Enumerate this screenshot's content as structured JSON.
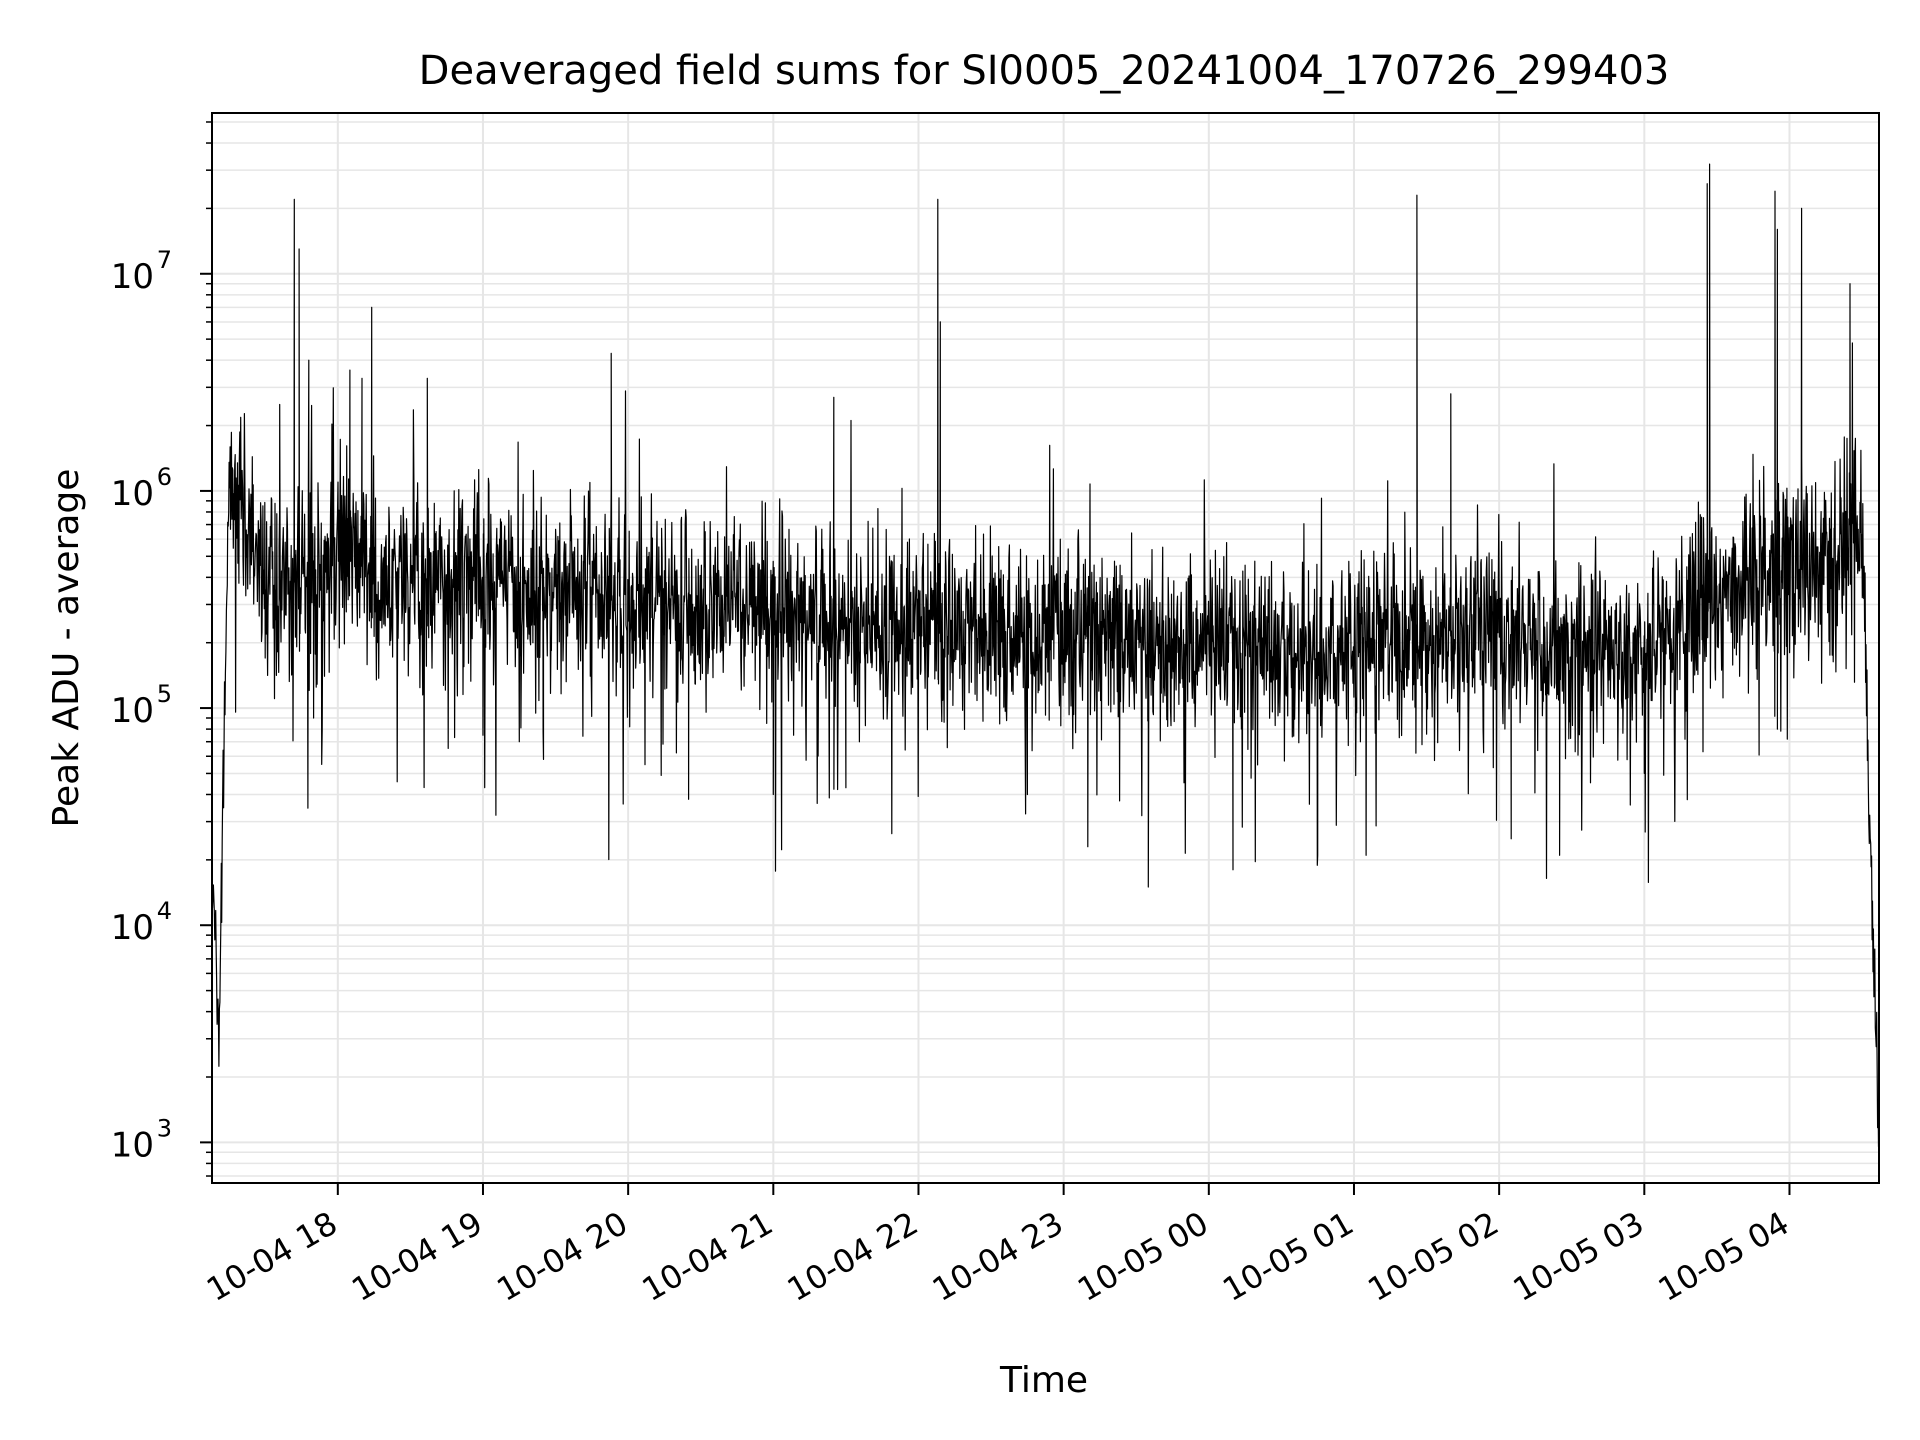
{
  "chart_data": {
    "type": "line",
    "title": "Deaveraged field sums for SI0005_20241004_170726_299403",
    "xlabel": "Time",
    "ylabel": "Peak ADU - average",
    "yscale": "log",
    "ylim": [
      650,
      55000000
    ],
    "xlim": [
      "2024-10-04 17:08",
      "2024-10-05 04:37"
    ],
    "grid": true,
    "legend": "none",
    "line_color": "#000000",
    "grid_color": "#e6e6e6",
    "x_ticks": [
      {
        "label": "10-04 18",
        "value": "2024-10-04 18:00"
      },
      {
        "label": "10-04 19",
        "value": "2024-10-04 19:00"
      },
      {
        "label": "10-04 20",
        "value": "2024-10-04 20:00"
      },
      {
        "label": "10-04 21",
        "value": "2024-10-04 21:00"
      },
      {
        "label": "10-04 22",
        "value": "2024-10-04 22:00"
      },
      {
        "label": "10-04 23",
        "value": "2024-10-04 23:00"
      },
      {
        "label": "10-05 00",
        "value": "2024-10-05 00:00"
      },
      {
        "label": "10-05 01",
        "value": "2024-10-05 01:00"
      },
      {
        "label": "10-05 02",
        "value": "2024-10-05 02:00"
      },
      {
        "label": "10-05 03",
        "value": "2024-10-05 03:00"
      },
      {
        "label": "10-05 04",
        "value": "2024-10-05 04:00"
      }
    ],
    "y_ticks": [
      {
        "mantissa": "10",
        "exp": "3",
        "value": 1000
      },
      {
        "mantissa": "10",
        "exp": "4",
        "value": 10000
      },
      {
        "mantissa": "10",
        "exp": "5",
        "value": 100000
      },
      {
        "mantissa": "10",
        "exp": "6",
        "value": 1000000
      },
      {
        "mantissa": "10",
        "exp": "7",
        "value": 10000000
      }
    ],
    "series": [
      {
        "x": [
          "2024-10-04 17:08",
          "2024-10-04 17:09",
          "2024-10-04 17:10",
          "2024-10-04 17:11",
          "2024-10-04 17:12",
          "2024-10-04 17:13",
          "2024-10-04 17:14",
          "2024-10-04 17:15",
          "2024-10-04 17:16",
          "2024-10-04 17:20",
          "2024-10-04 17:25",
          "2024-10-04 17:30",
          "2024-10-04 17:35",
          "2024-10-04 17:40",
          "2024-10-04 17:45",
          "2024-10-04 17:50",
          "2024-10-04 17:55",
          "2024-10-04 18:00",
          "2024-10-04 18:10",
          "2024-10-04 18:20",
          "2024-10-04 18:30",
          "2024-10-04 18:40",
          "2024-10-04 18:50",
          "2024-10-04 19:00",
          "2024-10-04 19:15",
          "2024-10-04 19:30",
          "2024-10-04 19:45",
          "2024-10-04 20:00",
          "2024-10-04 20:15",
          "2024-10-04 20:30",
          "2024-10-04 20:45",
          "2024-10-04 21:00",
          "2024-10-04 21:15",
          "2024-10-04 21:30",
          "2024-10-04 21:45",
          "2024-10-04 22:00",
          "2024-10-04 22:15",
          "2024-10-04 22:30",
          "2024-10-04 22:45",
          "2024-10-04 23:00",
          "2024-10-04 23:15",
          "2024-10-04 23:30",
          "2024-10-04 23:45",
          "2024-10-05 00:00",
          "2024-10-05 00:15",
          "2024-10-05 00:30",
          "2024-10-05 00:45",
          "2024-10-05 01:00",
          "2024-10-05 01:15",
          "2024-10-05 01:30",
          "2024-10-05 01:45",
          "2024-10-05 02:00",
          "2024-10-05 02:15",
          "2024-10-05 02:30",
          "2024-10-05 02:45",
          "2024-10-05 03:00",
          "2024-10-05 03:15",
          "2024-10-05 03:30",
          "2024-10-05 03:45",
          "2024-10-05 04:00",
          "2024-10-05 04:10",
          "2024-10-05 04:20",
          "2024-10-05 04:25",
          "2024-10-05 04:30",
          "2024-10-05 04:33",
          "2024-10-05 04:35",
          "2024-10-05 04:37"
        ],
        "values": [
          10000,
          15000,
          4500,
          3000,
          15000,
          60000,
          300000,
          1000000,
          1200000,
          900000,
          500000,
          350000,
          300000,
          400000,
          350000,
          450000,
          400000,
          500000,
          450000,
          400000,
          380000,
          400000,
          420000,
          400000,
          380000,
          350000,
          330000,
          300000,
          320000,
          300000,
          280000,
          290000,
          260000,
          250000,
          240000,
          250000,
          240000,
          230000,
          220000,
          220000,
          210000,
          200000,
          190000,
          200000,
          190000,
          200000,
          180000,
          200000,
          210000,
          220000,
          230000,
          240000,
          180000,
          170000,
          180000,
          190000,
          260000,
          320000,
          400000,
          420000,
          450000,
          500000,
          700000,
          800000,
          30000,
          6000,
          1000
        ]
      }
    ],
    "spikes": [
      {
        "x": "2024-10-04 17:36",
        "y": 2500000
      },
      {
        "x": "2024-10-04 17:42",
        "y": 22000000
      },
      {
        "x": "2024-10-04 17:44",
        "y": 13000000
      },
      {
        "x": "2024-10-04 17:48",
        "y": 4000000
      },
      {
        "x": "2024-10-04 18:05",
        "y": 3600000
      },
      {
        "x": "2024-10-04 18:10",
        "y": 3300000
      },
      {
        "x": "2024-10-04 18:14",
        "y": 7000000
      },
      {
        "x": "2024-10-04 18:37",
        "y": 3300000
      },
      {
        "x": "2024-10-04 19:53",
        "y": 4300000
      },
      {
        "x": "2024-10-04 21:25",
        "y": 2700000
      },
      {
        "x": "2024-10-04 22:08",
        "y": 22000000
      },
      {
        "x": "2024-10-04 22:09",
        "y": 6000000
      },
      {
        "x": "2024-10-05 01:26",
        "y": 23000000
      },
      {
        "x": "2024-10-05 01:40",
        "y": 2800000
      },
      {
        "x": "2024-10-05 03:26",
        "y": 26000000
      },
      {
        "x": "2024-10-05 03:27",
        "y": 32000000
      },
      {
        "x": "2024-10-05 03:54",
        "y": 24000000
      },
      {
        "x": "2024-10-05 03:55",
        "y": 16000000
      },
      {
        "x": "2024-10-05 04:05",
        "y": 20000000
      },
      {
        "x": "2024-10-05 04:25",
        "y": 9000000
      },
      {
        "x": "2024-10-05 04:26",
        "y": 4800000
      }
    ],
    "dips": [
      {
        "x": "2024-10-04 17:30",
        "y": 170000
      },
      {
        "x": "2024-10-04 17:50",
        "y": 90000
      },
      {
        "x": "2024-10-04 19:00",
        "y": 75000
      },
      {
        "x": "2024-10-04 19:15",
        "y": 70000
      },
      {
        "x": "2024-10-04 19:25",
        "y": 58000
      },
      {
        "x": "2024-10-04 20:25",
        "y": 38000
      },
      {
        "x": "2024-10-04 21:00",
        "y": 40000
      },
      {
        "x": "2024-10-04 21:30",
        "y": 43000
      },
      {
        "x": "2024-10-04 22:45",
        "y": 40000
      },
      {
        "x": "2024-10-04 23:10",
        "y": 23000
      },
      {
        "x": "2024-10-04 23:35",
        "y": 15000
      },
      {
        "x": "2024-10-05 00:10",
        "y": 18000
      },
      {
        "x": "2024-10-05 00:45",
        "y": 21000
      },
      {
        "x": "2024-10-05 01:05",
        "y": 21000
      },
      {
        "x": "2024-10-05 02:05",
        "y": 25000
      },
      {
        "x": "2024-10-05 02:25",
        "y": 21000
      },
      {
        "x": "2024-10-05 03:00",
        "y": 50000
      },
      {
        "x": "2024-10-05 03:55",
        "y": 80000
      }
    ]
  }
}
